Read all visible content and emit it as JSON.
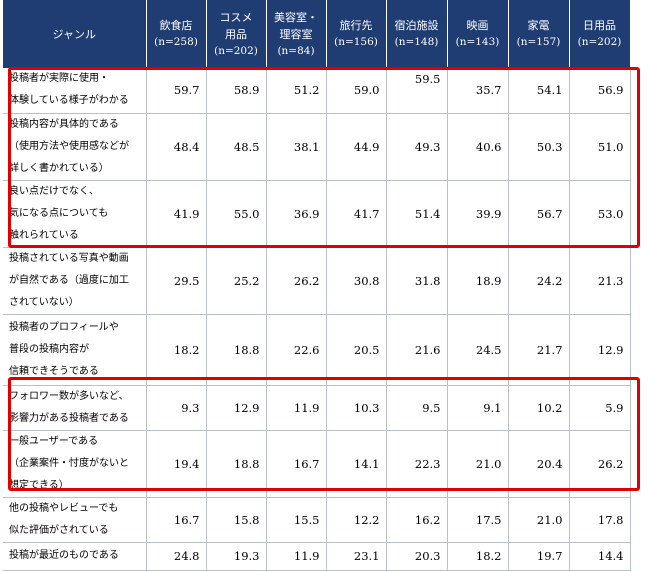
{
  "header": {
    "genre": "ジャンル",
    "columns": [
      {
        "lines": [
          "飲食店"
        ],
        "n": "(n=258)"
      },
      {
        "lines": [
          "コスメ",
          "用品"
        ],
        "n": "(n=202)"
      },
      {
        "lines": [
          "美容室・",
          "理容室"
        ],
        "n": "(n=84)"
      },
      {
        "lines": [
          "旅行先"
        ],
        "n": "(n=156)"
      },
      {
        "lines": [
          "宿泊施設"
        ],
        "n": "(n=148)"
      },
      {
        "lines": [
          "映画"
        ],
        "n": "(n=143)"
      },
      {
        "lines": [
          "家電"
        ],
        "n": "(n=157)"
      },
      {
        "lines": [
          "日用品"
        ],
        "n": "(n=202)"
      }
    ]
  },
  "rows": [
    {
      "label": [
        "投稿者が実際に使用・",
        "体験している様子がわかる"
      ],
      "values": [
        "59.7",
        "58.9",
        "51.2",
        "59.0",
        "59.5",
        "35.7",
        "54.1",
        "56.9"
      ],
      "top": [
        4
      ]
    },
    {
      "label": [
        "投稿内容が具体的である",
        "（使用方法や使用感などが",
        "詳しく書かれている）"
      ],
      "values": [
        "48.4",
        "48.5",
        "38.1",
        "44.9",
        "49.3",
        "40.6",
        "50.3",
        "51.0"
      ]
    },
    {
      "label": [
        "良い点だけでなく、",
        "気になる点についても",
        "触れられている"
      ],
      "values": [
        "41.9",
        "55.0",
        "36.9",
        "41.7",
        "51.4",
        "39.9",
        "56.7",
        "53.0"
      ]
    },
    {
      "label": [
        "投稿されている写真や動画",
        "が自然である（過度に加工",
        "されていない）"
      ],
      "values": [
        "29.5",
        "25.2",
        "26.2",
        "30.8",
        "31.8",
        "18.9",
        "24.2",
        "21.3"
      ]
    },
    {
      "label": [
        "投稿者のプロフィールや",
        "普段の投稿内容が",
        "信頼できそうである"
      ],
      "values": [
        "18.2",
        "18.8",
        "22.6",
        "20.5",
        "21.6",
        "24.5",
        "21.7",
        "12.9"
      ]
    },
    {
      "label": [
        "フォロワー数が多いなど、",
        "影響力がある投稿者である"
      ],
      "values": [
        "9.3",
        "12.9",
        "11.9",
        "10.3",
        "9.5",
        "9.1",
        "10.2",
        "5.9"
      ]
    },
    {
      "label": [
        "一般ユーザーである",
        "（企業案件・忖度がないと",
        "想定できる）"
      ],
      "values": [
        "19.4",
        "18.8",
        "16.7",
        "14.1",
        "22.3",
        "21.0",
        "20.4",
        "26.2"
      ]
    },
    {
      "label": [
        "他の投稿やレビューでも",
        "似た評価がされている"
      ],
      "values": [
        "16.7",
        "15.8",
        "15.5",
        "12.2",
        "16.2",
        "17.5",
        "21.0",
        "17.8"
      ]
    },
    {
      "label": [
        "投稿が最近のものである"
      ],
      "values": [
        "24.8",
        "19.3",
        "11.9",
        "23.1",
        "20.3",
        "18.2",
        "19.7",
        "14.4"
      ]
    }
  ],
  "colors": {
    "header_bg": "#1f3c73",
    "highlight": "#e00000"
  }
}
